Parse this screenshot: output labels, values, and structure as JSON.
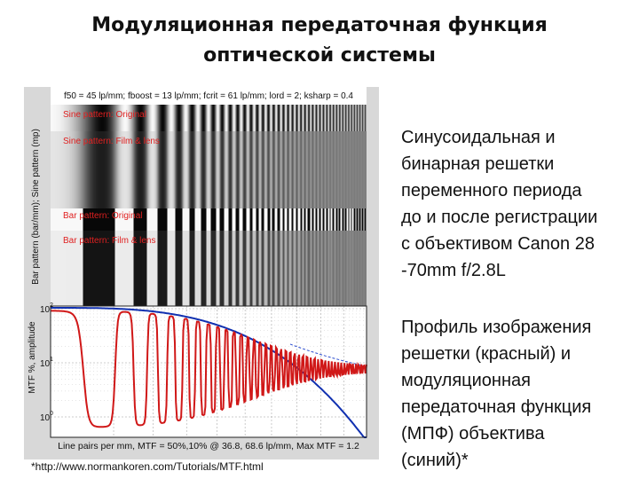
{
  "header": {
    "title": "Модуляционная передаточная функция оптической системы"
  },
  "figure": {
    "parameters": "f50 = 45 lp/mm; fboost = 13 lp/mm; fcrit = 61 lp/mm; lord = 2; ksharp = 0.4",
    "pattern_labels": [
      "Sine pattern: Original",
      "Sine pattern: Film & lens",
      "Bar pattern: Original",
      "Bar pattern: Film & lens"
    ],
    "pattern_axis_label": "Bar pattern (bar/mm); Sine pattern (mp)",
    "mtf_axis_label": "MTF %, amplitude",
    "mtf_yticks": [
      {
        "base": "10",
        "exp": "2"
      },
      {
        "base": "10",
        "exp": "1"
      },
      {
        "base": "10",
        "exp": "0"
      }
    ],
    "x_caption": "Line pairs per mm,  MTF = 50%,10% @ 36.8, 68.6 lp/mm,  Max MTF = 1.2"
  },
  "footnote": "*http://www.normankoren.com/Tutorials/MTF.html",
  "description": {
    "paragraph_1": [
      "Синусоидальная и",
      "бинарная решетки",
      "переменного периода",
      "до и после регистрации",
      "с объективом Canon 28",
      "-70mm f/2.8L"
    ],
    "paragraph_2": [
      "Профиль изображения",
      "решетки (красный) и",
      "модуляционная",
      "передаточная функция",
      "(МПФ) объектива",
      "(синий)*"
    ]
  }
}
